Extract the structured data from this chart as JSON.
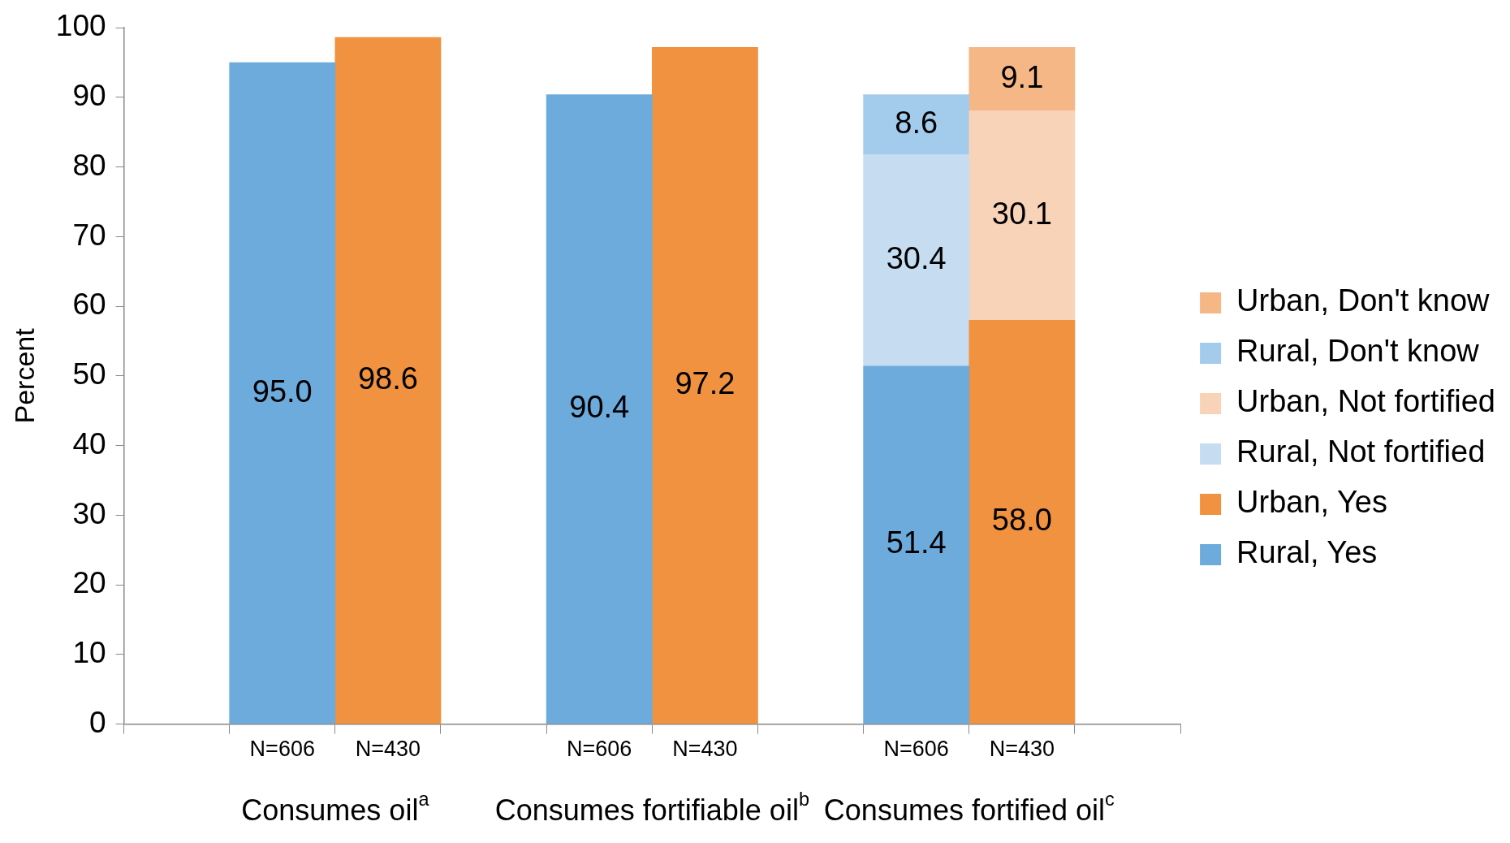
{
  "chart_data": {
    "type": "bar",
    "stacked": true,
    "ylabel": "Percent",
    "categories": [
      null,
      "N=606",
      "N=430",
      null,
      "N=606",
      "N=430",
      null,
      "N=606",
      "N=430",
      null
    ],
    "series": [
      {
        "name": "Rural, Yes",
        "color": "#6cabdc",
        "values": [
          null,
          95.0,
          null,
          null,
          90.4,
          null,
          null,
          51.4,
          null,
          null
        ],
        "value_labels": [
          null,
          "95.0",
          null,
          null,
          "90.4",
          null,
          null,
          "51.4",
          null,
          null
        ]
      },
      {
        "name": "Urban, Yes",
        "color": "#f0923f",
        "values": [
          null,
          null,
          98.6,
          null,
          null,
          97.2,
          null,
          null,
          58.0,
          null
        ],
        "value_labels": [
          null,
          null,
          "98.6",
          null,
          null,
          "97.2",
          null,
          null,
          "58.0",
          null
        ]
      },
      {
        "name": "Rural, Not fortified",
        "color": "#c6ddf1",
        "values": [
          null,
          null,
          null,
          null,
          null,
          null,
          null,
          30.4,
          null,
          null
        ],
        "value_labels": [
          null,
          null,
          null,
          null,
          null,
          null,
          null,
          "30.4",
          null,
          null
        ]
      },
      {
        "name": "Urban, Not fortified",
        "color": "#f9d3b8",
        "values": [
          null,
          null,
          null,
          null,
          null,
          null,
          null,
          null,
          30.1,
          null
        ],
        "value_labels": [
          null,
          null,
          null,
          null,
          null,
          null,
          null,
          null,
          "30.1",
          null
        ]
      },
      {
        "name": "Rural, Don't know",
        "color": "#a3cbec",
        "values": [
          null,
          null,
          null,
          null,
          null,
          null,
          null,
          8.6,
          null,
          null
        ],
        "value_labels": [
          null,
          null,
          null,
          null,
          null,
          null,
          null,
          "8.6",
          null,
          null
        ]
      },
      {
        "name": "Urban, Don't know",
        "color": "#f6b787",
        "values": [
          null,
          null,
          null,
          null,
          null,
          null,
          null,
          null,
          9.1,
          null
        ],
        "value_labels": [
          null,
          null,
          null,
          null,
          null,
          null,
          null,
          null,
          "9.1",
          null
        ]
      }
    ],
    "annotations": [
      "Consumes oil$^{a}$",
      "Consumes fortifiable oil$^{b}$",
      "Consumes fortified oil$^{c}$"
    ],
    "ylim": [
      0,
      100
    ],
    "yticks": [
      0,
      10,
      20,
      30,
      40,
      50,
      60,
      70,
      80,
      90,
      100
    ],
    "grid": false,
    "legend": "right"
  }
}
